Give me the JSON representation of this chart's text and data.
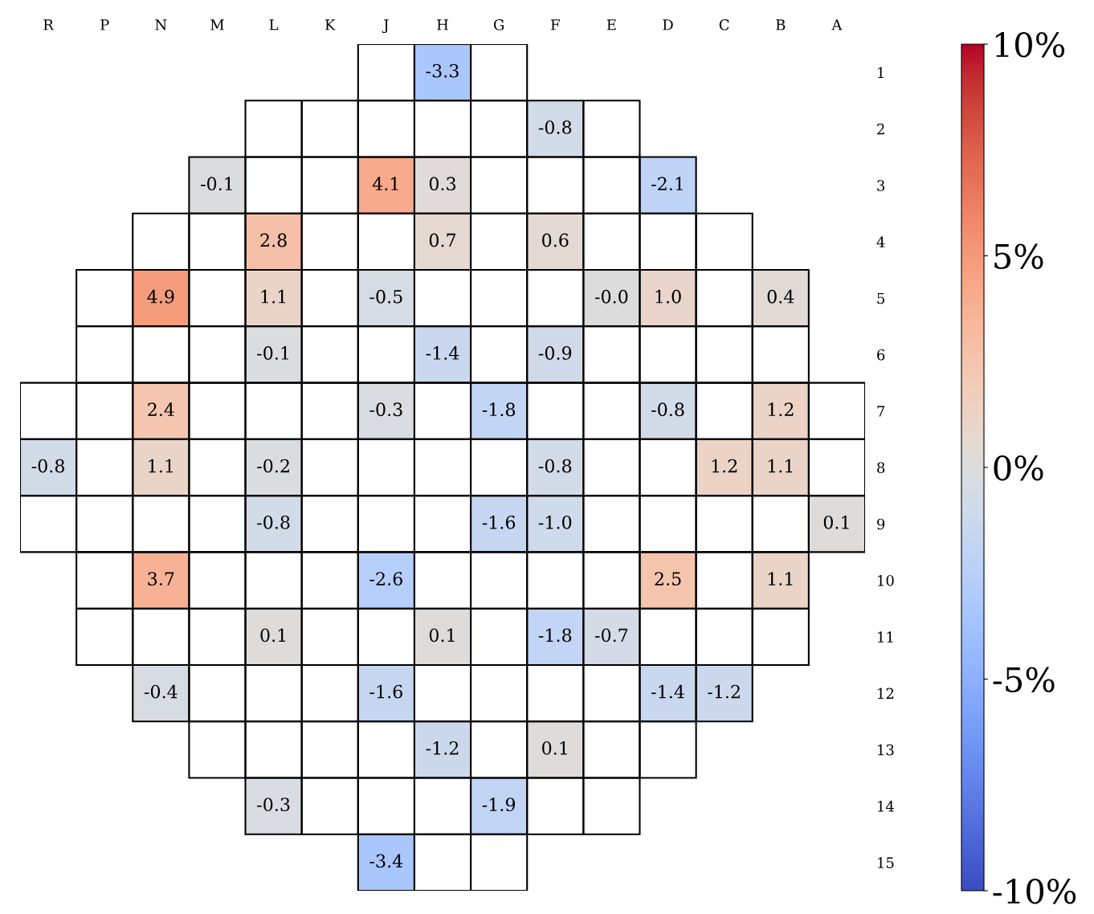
{
  "chart_data": {
    "type": "heatmap",
    "categories": [
      "R",
      "P",
      "N",
      "M",
      "L",
      "K",
      "J",
      "H",
      "G",
      "F",
      "E",
      "D",
      "C",
      "B",
      "A"
    ],
    "y_categories": [
      "1",
      "2",
      "3",
      "4",
      "5",
      "6",
      "7",
      "8",
      "9",
      "10",
      "11",
      "12",
      "13",
      "14",
      "15"
    ],
    "cells": [
      [
        null,
        null,
        null,
        null,
        null,
        null,
        null,
        -3.3,
        null,
        null,
        null,
        null,
        null,
        null,
        null
      ],
      [
        null,
        null,
        null,
        null,
        null,
        null,
        null,
        null,
        null,
        -0.8,
        null,
        null,
        null,
        null,
        null
      ],
      [
        null,
        null,
        null,
        -0.1,
        null,
        null,
        4.1,
        0.3,
        null,
        null,
        null,
        -2.1,
        null,
        null,
        null
      ],
      [
        null,
        null,
        null,
        null,
        2.8,
        null,
        null,
        0.7,
        null,
        0.6,
        null,
        null,
        null,
        null,
        null
      ],
      [
        null,
        null,
        4.9,
        null,
        1.1,
        null,
        -0.5,
        null,
        null,
        null,
        -0.0,
        1.0,
        null,
        0.4,
        null
      ],
      [
        null,
        null,
        null,
        null,
        -0.1,
        null,
        null,
        -1.4,
        null,
        -0.9,
        null,
        null,
        null,
        null,
        null
      ],
      [
        null,
        null,
        2.4,
        null,
        null,
        null,
        -0.3,
        null,
        -1.8,
        null,
        null,
        -0.8,
        null,
        1.2,
        null
      ],
      [
        -0.8,
        null,
        1.1,
        null,
        -0.2,
        null,
        null,
        null,
        null,
        -0.8,
        null,
        null,
        1.2,
        1.1,
        null
      ],
      [
        null,
        null,
        null,
        null,
        -0.8,
        null,
        null,
        null,
        -1.6,
        -1.0,
        null,
        null,
        null,
        null,
        0.1
      ],
      [
        null,
        null,
        3.7,
        null,
        null,
        null,
        -2.6,
        null,
        null,
        null,
        null,
        2.5,
        null,
        1.1,
        null
      ],
      [
        null,
        null,
        null,
        null,
        0.1,
        null,
        null,
        0.1,
        null,
        -1.8,
        -0.7,
        null,
        null,
        null,
        null
      ],
      [
        null,
        null,
        -0.4,
        null,
        null,
        null,
        -1.6,
        null,
        null,
        null,
        null,
        -1.4,
        -1.2,
        null,
        null
      ],
      [
        null,
        null,
        null,
        null,
        null,
        null,
        null,
        -1.2,
        null,
        0.1,
        null,
        null,
        null,
        null,
        null
      ],
      [
        null,
        null,
        null,
        null,
        -0.3,
        null,
        null,
        null,
        -1.9,
        null,
        null,
        null,
        null,
        null,
        null
      ],
      [
        null,
        null,
        null,
        null,
        null,
        null,
        -3.4,
        null,
        null,
        null,
        null,
        null,
        null,
        null,
        null
      ]
    ],
    "cell_labels": [
      [
        null,
        null,
        null,
        null,
        null,
        null,
        null,
        "-3.3",
        null,
        null,
        null,
        null,
        null,
        null,
        null
      ],
      [
        null,
        null,
        null,
        null,
        null,
        null,
        null,
        null,
        null,
        "-0.8",
        null,
        null,
        null,
        null,
        null
      ],
      [
        null,
        null,
        null,
        "-0.1",
        null,
        null,
        "4.1",
        "0.3",
        null,
        null,
        null,
        "-2.1",
        null,
        null,
        null
      ],
      [
        null,
        null,
        null,
        null,
        "2.8",
        null,
        null,
        "0.7",
        null,
        "0.6",
        null,
        null,
        null,
        null,
        null
      ],
      [
        null,
        null,
        "4.9",
        null,
        "1.1",
        null,
        "-0.5",
        null,
        null,
        null,
        "-0.0",
        "1.0",
        null,
        "0.4",
        null
      ],
      [
        null,
        null,
        null,
        null,
        "-0.1",
        null,
        null,
        "-1.4",
        null,
        "-0.9",
        null,
        null,
        null,
        null,
        null
      ],
      [
        null,
        null,
        "2.4",
        null,
        null,
        null,
        "-0.3",
        null,
        "-1.8",
        null,
        null,
        "-0.8",
        null,
        "1.2",
        null
      ],
      [
        "-0.8",
        null,
        "1.1",
        null,
        "-0.2",
        null,
        null,
        null,
        null,
        "-0.8",
        null,
        null,
        "1.2",
        "1.1",
        null
      ],
      [
        null,
        null,
        null,
        null,
        "-0.8",
        null,
        null,
        null,
        "-1.6",
        "-1.0",
        null,
        null,
        null,
        null,
        "0.1"
      ],
      [
        null,
        null,
        "3.7",
        null,
        null,
        null,
        "-2.6",
        null,
        null,
        null,
        null,
        "2.5",
        null,
        "1.1",
        null
      ],
      [
        null,
        null,
        null,
        null,
        "0.1",
        null,
        null,
        "0.1",
        null,
        "-1.8",
        "-0.7",
        null,
        null,
        null,
        null
      ],
      [
        null,
        null,
        "-0.4",
        null,
        null,
        null,
        "-1.6",
        null,
        null,
        null,
        null,
        "-1.4",
        "-1.2",
        null,
        null
      ],
      [
        null,
        null,
        null,
        null,
        null,
        null,
        null,
        "-1.2",
        null,
        "0.1",
        null,
        null,
        null,
        null,
        null
      ],
      [
        null,
        null,
        null,
        null,
        "-0.3",
        null,
        null,
        null,
        "-1.9",
        null,
        null,
        null,
        null,
        null,
        null
      ],
      [
        null,
        null,
        null,
        null,
        null,
        null,
        "-3.4",
        null,
        null,
        null,
        null,
        null,
        null,
        null,
        null
      ]
    ],
    "clim": [
      -10,
      10
    ],
    "cticks": [
      {
        "value": -10,
        "label": "-10%"
      },
      {
        "value": -5,
        "label": "-5%"
      },
      {
        "value": 0,
        "label": "0%"
      },
      {
        "value": 5,
        "label": "5%"
      },
      {
        "value": 10,
        "label": "10%"
      }
    ]
  }
}
